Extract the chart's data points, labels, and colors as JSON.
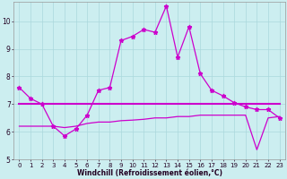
{
  "xlabel": "Windchill (Refroidissement éolien,°C)",
  "ylabel": "",
  "background_color": "#cceef0",
  "line_color": "#cc00cc",
  "xlim": [
    -0.5,
    23.5
  ],
  "ylim": [
    5.0,
    10.7
  ],
  "yticks": [
    5,
    6,
    7,
    8,
    9,
    10
  ],
  "xticks": [
    0,
    1,
    2,
    3,
    4,
    5,
    6,
    7,
    8,
    9,
    10,
    11,
    12,
    13,
    14,
    15,
    16,
    17,
    18,
    19,
    20,
    21,
    22,
    23
  ],
  "line1_x": [
    0,
    1,
    2,
    3,
    4,
    5,
    6,
    7,
    8,
    9,
    10,
    11,
    12,
    13,
    14,
    15,
    16,
    17,
    18,
    19,
    20,
    21,
    22,
    23
  ],
  "line1_y": [
    7.6,
    7.2,
    7.0,
    6.2,
    5.85,
    6.1,
    6.6,
    7.5,
    7.6,
    9.3,
    9.45,
    9.7,
    9.6,
    10.55,
    8.7,
    9.8,
    8.1,
    7.5,
    7.3,
    7.05,
    6.9,
    6.8,
    6.8,
    6.5
  ],
  "line2_x": [
    0,
    1,
    2,
    3,
    4,
    5,
    6,
    7,
    8,
    9,
    10,
    11,
    12,
    13,
    14,
    15,
    16,
    17,
    18,
    19,
    20,
    21,
    22,
    23
  ],
  "line2_y": [
    7.0,
    7.0,
    7.0,
    7.0,
    7.0,
    7.0,
    7.0,
    7.0,
    7.0,
    7.0,
    7.0,
    7.0,
    7.0,
    7.0,
    7.0,
    7.0,
    7.0,
    7.0,
    7.0,
    7.0,
    7.0,
    7.0,
    7.0,
    7.0
  ],
  "line3_x": [
    0,
    1,
    2,
    3,
    4,
    5,
    6,
    7,
    8,
    9,
    10,
    11,
    12,
    13,
    14,
    15,
    16,
    17,
    18,
    19,
    20,
    21,
    22,
    23
  ],
  "line3_y": [
    6.2,
    6.2,
    6.2,
    6.2,
    6.15,
    6.2,
    6.3,
    6.35,
    6.35,
    6.4,
    6.42,
    6.45,
    6.5,
    6.5,
    6.55,
    6.55,
    6.6,
    6.6,
    6.6,
    6.6,
    6.6,
    5.35,
    6.5,
    6.55
  ],
  "xlabel_fontsize": 5.5,
  "ylabel_fontsize": 6,
  "tick_labelsize": 5.0,
  "linewidth1": 0.9,
  "linewidth2": 1.5,
  "linewidth3": 0.9,
  "grid_color": "#aad8dc",
  "marker_size": 3.5
}
